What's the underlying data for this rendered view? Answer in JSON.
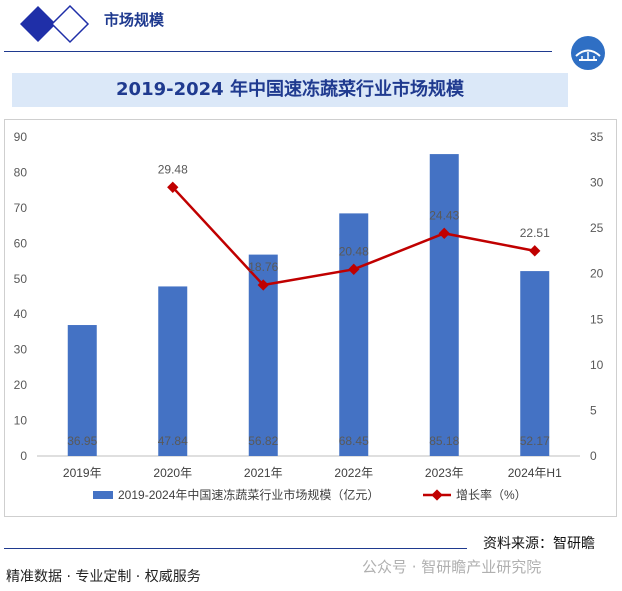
{
  "header": {
    "title": "市场规模"
  },
  "banner": {
    "title": "2019-2024 年中国速冻蔬菜行业市场规模"
  },
  "chart_data": {
    "type": "bar",
    "categories": [
      "2019年",
      "2020年",
      "2021年",
      "2022年",
      "2023年",
      "2024年H1"
    ],
    "series": [
      {
        "name": "2019-2024年中国速冻蔬菜行业市场规模（亿元）",
        "type": "bar",
        "axis": "left",
        "values": [
          36.95,
          47.84,
          56.82,
          68.45,
          85.18,
          52.17
        ],
        "labels": [
          "36.95",
          "47.84",
          "56.82",
          "68.45",
          "85.18",
          "52.17"
        ],
        "color": "#4472c4"
      },
      {
        "name": "增长率（%）",
        "type": "line",
        "axis": "right",
        "values": [
          null,
          29.48,
          18.76,
          20.48,
          24.43,
          22.51
        ],
        "labels": [
          "",
          "29.48",
          "18.76",
          "20.48",
          "24.43",
          "22.51"
        ],
        "color": "#c00000"
      }
    ],
    "y_left": {
      "ticks": [
        "0",
        "10",
        "20",
        "30",
        "40",
        "50",
        "60",
        "70",
        "80",
        "90"
      ],
      "range": [
        0,
        90
      ]
    },
    "y_right": {
      "ticks": [
        "0",
        "5",
        "10",
        "15",
        "20",
        "25",
        "30",
        "35"
      ],
      "range": [
        0,
        35
      ]
    },
    "grid": false,
    "legend_position": "bottom"
  },
  "footer": {
    "source": "资料来源：智研瞻",
    "left_text": "精准数据 · 专业定制 · 权威服务",
    "watermark": "公众号 · 智研瞻产业研究院"
  }
}
